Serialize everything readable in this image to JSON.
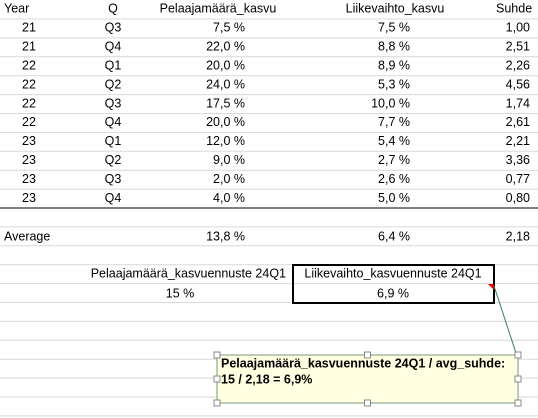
{
  "table": {
    "header": [
      "Year",
      "Q",
      "Pelaajamäärä_kasvu",
      "Liikevaihto_kasvu",
      "Suhde"
    ],
    "rows": [
      [
        "21",
        "Q3",
        "7,5 %",
        "7,5 %",
        "1,00"
      ],
      [
        "21",
        "Q4",
        "22,0 %",
        "8,8 %",
        "2,51"
      ],
      [
        "22",
        "Q1",
        "20,0 %",
        "8,9 %",
        "2,26"
      ],
      [
        "22",
        "Q2",
        "24,0 %",
        "5,3 %",
        "4,56"
      ],
      [
        "22",
        "Q3",
        "17,5 %",
        "10,0 %",
        "1,74"
      ],
      [
        "22",
        "Q4",
        "20,0 %",
        "7,7 %",
        "2,61"
      ],
      [
        "23",
        "Q1",
        "12,0 %",
        "5,4 %",
        "2,21"
      ],
      [
        "23",
        "Q2",
        "9,0 %",
        "2,7 %",
        "3,36"
      ],
      [
        "23",
        "Q3",
        "2,0 %",
        "2,6 %",
        "0,77"
      ],
      [
        "23",
        "Q4",
        "4,0 %",
        "5,0 %",
        "0,80"
      ]
    ]
  },
  "average": {
    "label": "Average",
    "values": [
      "13,8 %",
      "6,4 %",
      "2,18"
    ]
  },
  "forecast": {
    "labels": [
      "Pelaajamäärä_kasvuennuste 24Q1",
      "Liikevaihto_kasvuennuste 24Q1"
    ],
    "values": [
      "15 %",
      "6,9 %"
    ]
  },
  "comment": {
    "lines": [
      "Pelaajamäärä_kasvuennuste 24Q1 / avg_suhde:",
      "15 / 2,18 = 6,9%"
    ]
  }
}
